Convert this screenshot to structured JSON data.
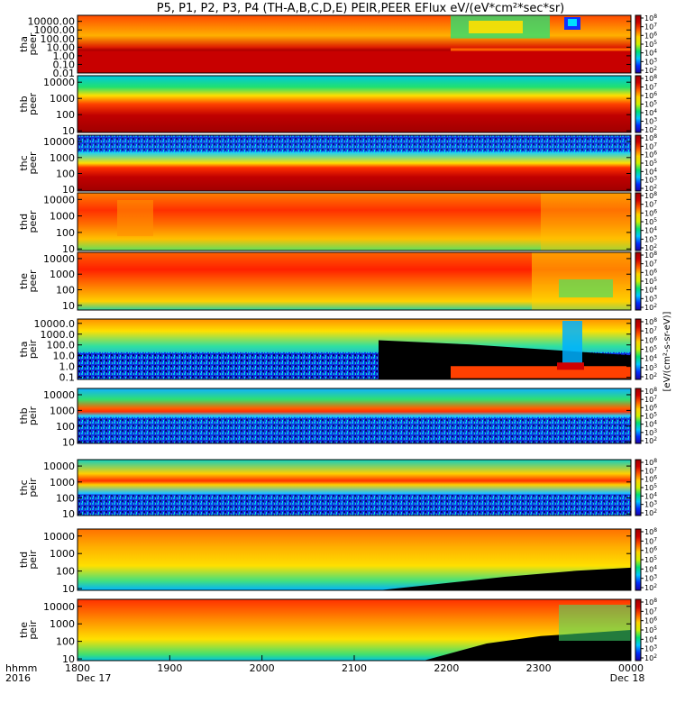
{
  "chart_data": {
    "type": "heatmap",
    "title": "P5, P1, P2, P3, P4 (TH-A,B,C,D,E) PEIR,PEER EFlux eV/(eV*cm²*sec*sr)",
    "x_axis": {
      "label_lines": [
        "hhmm",
        "2016"
      ],
      "ticks": [
        "1800",
        "1900",
        "2000",
        "2100",
        "2200",
        "2300",
        "0000"
      ],
      "tick_hours": [
        18,
        19,
        20,
        21,
        22,
        23,
        24
      ],
      "dates": [
        "Dec 17",
        "Dec 18"
      ],
      "range_hours": [
        18,
        24
      ]
    },
    "colorbar": {
      "scale": "log",
      "tick_exponents": [
        2,
        3,
        4,
        5,
        6,
        7,
        8
      ],
      "label": "[eV/(cm²-s-sr-eV)]",
      "colormap": [
        "#1a00a8",
        "#0030ff",
        "#00c8ff",
        "#00e070",
        "#d0f000",
        "#ffd000",
        "#ff5a00",
        "#d00000",
        "#a00000"
      ]
    },
    "panels": [
      {
        "probe": "tha",
        "species": "peer",
        "ylabel": [
          "tha",
          "peer"
        ],
        "y_ticks": [
          "10000.00",
          "1000.00",
          "100.00",
          "10.00",
          "1.00",
          "0.10",
          "0.01"
        ],
        "y_range_log": [
          -2,
          4.7
        ],
        "description_levels": {
          "low_energy_band": "saturated red below 10 eV",
          "high_energy": "orange/red, yellow-green after 2200, hot spot near 2330"
        }
      },
      {
        "probe": "thb",
        "species": "peer",
        "ylabel": [
          "thb",
          "peer"
        ],
        "y_ticks": [
          "10000",
          "1000",
          "100",
          "10"
        ],
        "y_range_log": [
          0.9,
          4.4
        ]
      },
      {
        "probe": "thc",
        "species": "peer",
        "ylabel": [
          "thc",
          "peer"
        ],
        "y_ticks": [
          "10000",
          "1000",
          "100",
          "10"
        ],
        "y_range_log": [
          0.9,
          4.4
        ]
      },
      {
        "probe": "thd",
        "species": "peer",
        "ylabel": [
          "thd",
          "peer"
        ],
        "y_ticks": [
          "10000",
          "1000",
          "100",
          "10"
        ],
        "y_range_log": [
          0.9,
          4.4
        ]
      },
      {
        "probe": "the",
        "species": "peer",
        "ylabel": [
          "the",
          "peer"
        ],
        "y_ticks": [
          "10000",
          "1000",
          "100",
          "10"
        ],
        "y_range_log": [
          0.7,
          4.4
        ]
      },
      {
        "probe": "tha",
        "species": "peir",
        "ylabel": [
          "tha",
          "peir"
        ],
        "y_ticks": [
          "10000.0",
          "1000.0",
          "100.0",
          "10.0",
          "1.0",
          "0.1"
        ],
        "y_range_log": [
          -1.2,
          4.4
        ]
      },
      {
        "probe": "thb",
        "species": "peir",
        "ylabel": [
          "thb",
          "peir"
        ],
        "y_ticks": [
          "10000",
          "1000",
          "100",
          "10"
        ],
        "y_range_log": [
          0.9,
          4.4
        ]
      },
      {
        "probe": "thc",
        "species": "peir",
        "ylabel": [
          "thc",
          "peir"
        ],
        "y_ticks": [
          "10000",
          "1000",
          "100",
          "10"
        ],
        "y_range_log": [
          0.9,
          4.4
        ]
      },
      {
        "probe": "thd",
        "species": "peir",
        "ylabel": [
          "thd",
          "peir"
        ],
        "y_ticks": [
          "10000",
          "1000",
          "100",
          "10"
        ],
        "y_range_log": [
          0.9,
          4.4
        ]
      },
      {
        "probe": "the",
        "species": "peir",
        "ylabel": [
          "the",
          "peir"
        ],
        "y_ticks": [
          "10000",
          "1000",
          "100",
          "10"
        ],
        "y_range_log": [
          0.9,
          4.4
        ]
      }
    ]
  }
}
